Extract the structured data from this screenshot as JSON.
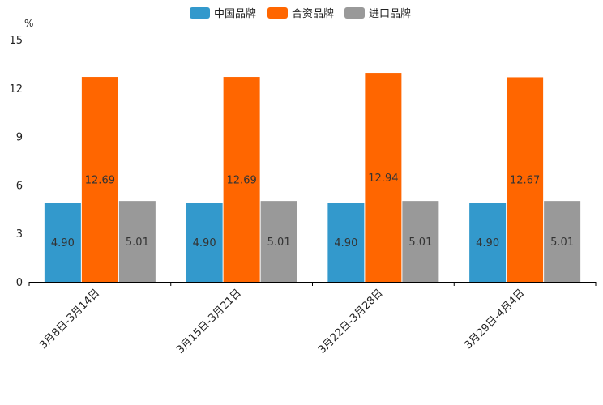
{
  "chart_data": {
    "type": "bar",
    "title": "",
    "unit_label": "%",
    "xlabel": "",
    "ylabel": "%",
    "ylim": [
      0,
      15
    ],
    "yticks": [
      0,
      3,
      6,
      9,
      12,
      15
    ],
    "grid": false,
    "legend_position": "top-center",
    "categories": [
      "3月8日-3月14日",
      "3月15日-3月21日",
      "3月22日-3月28日",
      "3月29日-4月4日"
    ],
    "series": [
      {
        "name": "中国品牌",
        "color": "#3399cc",
        "values": [
          4.9,
          4.9,
          4.9,
          4.9
        ],
        "labels": [
          "4.90",
          "4.90",
          "4.90",
          "4.90"
        ]
      },
      {
        "name": "合资品牌",
        "color": "#ff6600",
        "values": [
          12.69,
          12.69,
          12.94,
          12.67
        ],
        "labels": [
          "12.69",
          "12.69",
          "12.94",
          "12.67"
        ]
      },
      {
        "name": "进口品牌",
        "color": "#999999",
        "values": [
          5.01,
          5.01,
          5.01,
          5.01
        ],
        "labels": [
          "5.01",
          "5.01",
          "5.01",
          "5.01"
        ]
      }
    ]
  }
}
